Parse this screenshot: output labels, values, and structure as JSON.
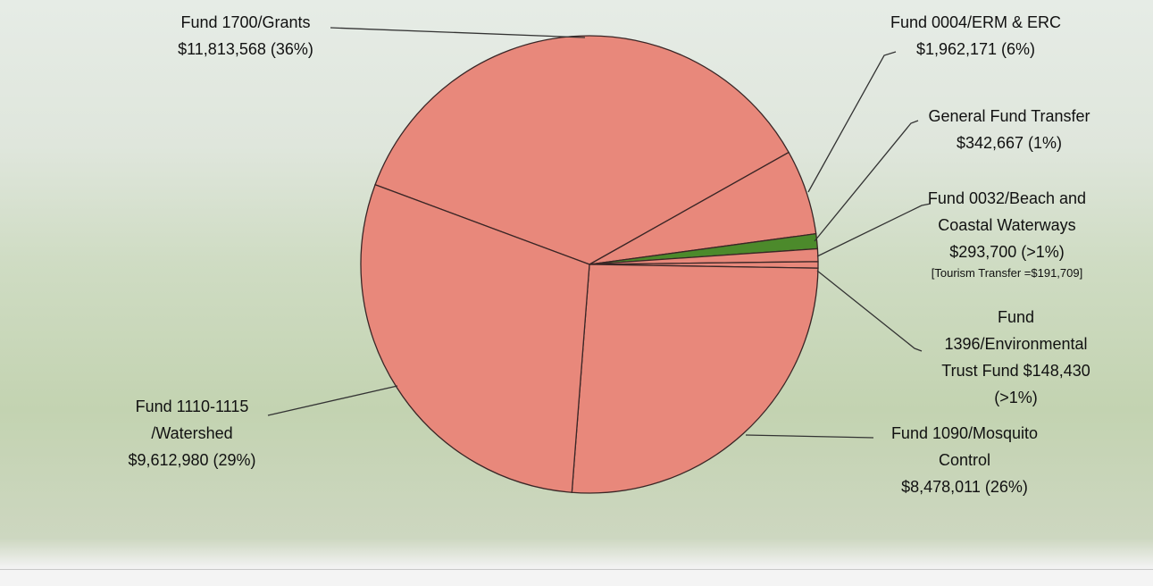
{
  "chart_data": {
    "type": "pie",
    "categories": [
      "Fund 1700/Grants",
      "Fund 0004/ERM & ERC",
      "General Fund Transfer",
      "Fund 0032/Beach and Coastal Waterways",
      "Fund 1396/Environmental Trust Fund",
      "Fund 1090/Mosquito Control",
      "Fund 1110-1115 /Watershed"
    ],
    "values": [
      11813568,
      1962171,
      342667,
      293700,
      148430,
      8478011,
      9612980
    ],
    "value_labels": [
      "$11,813,568 (36%)",
      "$1,962,171 (6%)",
      "$342,667 (1%)",
      "$293,700 (>1%)",
      "$148,430 (>1%)",
      "$8,478,011 (26%)",
      "$9,612,980 (29%)"
    ],
    "colors": [
      "#e8887b",
      "#e8887b",
      "#4c8a2b",
      "#e8887b",
      "#e8887b",
      "#e8887b",
      "#e8887b"
    ],
    "annotation": "[Tourism Transfer =$191,709]"
  }
}
